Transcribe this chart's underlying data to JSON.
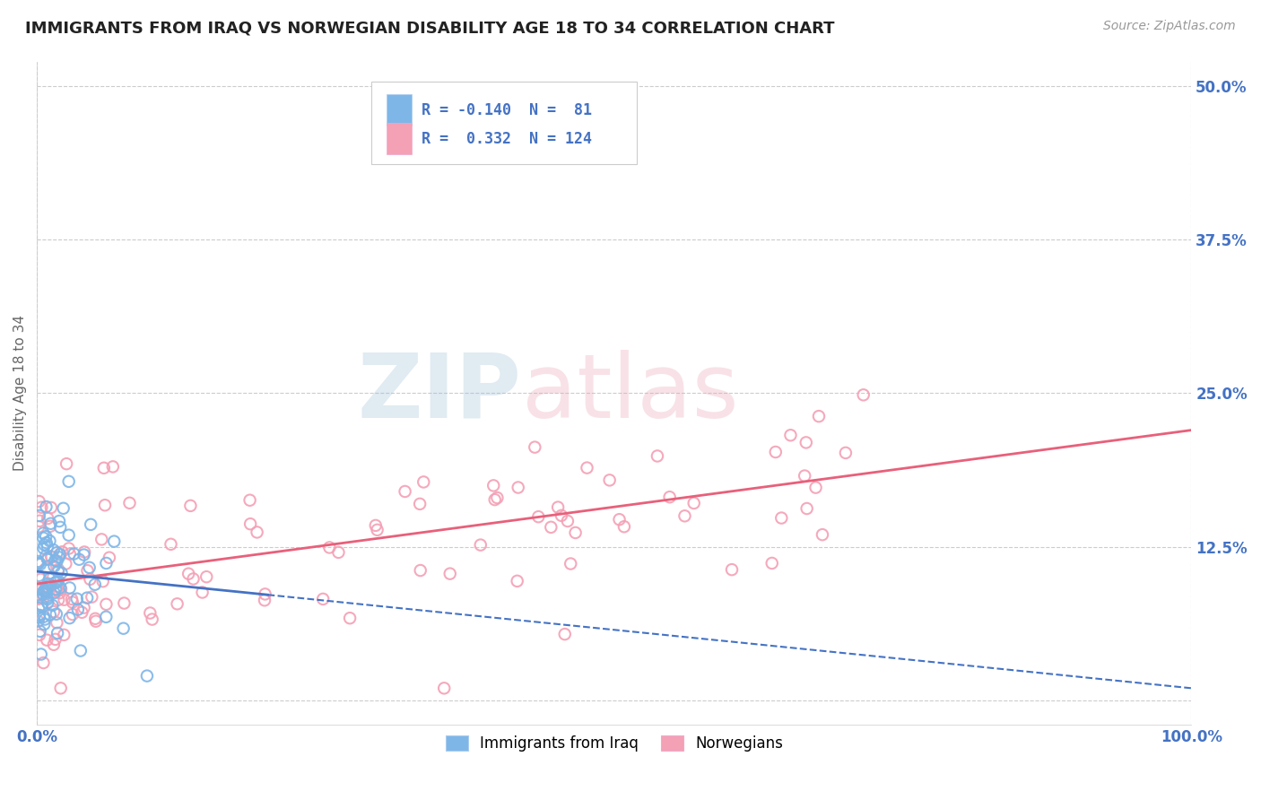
{
  "title": "IMMIGRANTS FROM IRAQ VS NORWEGIAN DISABILITY AGE 18 TO 34 CORRELATION CHART",
  "source": "Source: ZipAtlas.com",
  "ylabel": "Disability Age 18 to 34",
  "xlim": [
    0,
    100
  ],
  "ylim": [
    -2,
    52
  ],
  "ytick_vals": [
    0,
    12.5,
    25.0,
    37.5,
    50.0
  ],
  "ytick_labels": [
    "",
    "12.5%",
    "25.0%",
    "37.5%",
    "50.0%"
  ],
  "xtick_vals": [
    0,
    100
  ],
  "xtick_labels": [
    "0.0%",
    "100.0%"
  ],
  "iraq_R": -0.14,
  "iraq_N": 81,
  "norway_R": 0.332,
  "norway_N": 124,
  "iraq_color": "#7EB6E8",
  "norway_color": "#F4A0B5",
  "iraq_line_color": "#4472C4",
  "norway_line_color": "#E8607A",
  "legend_labels": [
    "Immigrants from Iraq",
    "Norwegians"
  ],
  "background_color": "#FFFFFF",
  "grid_color": "#CCCCCC",
  "title_color": "#222222",
  "title_fontsize": 13,
  "axis_label_color": "#4472C4",
  "watermark_zip": "ZIP",
  "watermark_atlas": "atlas",
  "iraq_trend_x0": 0,
  "iraq_trend_x1": 100,
  "iraq_trend_y0": 10.5,
  "iraq_trend_y1": 1.0,
  "norway_trend_x0": 0,
  "norway_trend_x1": 100,
  "norway_trend_y0": 9.5,
  "norway_trend_y1": 22.0,
  "iraq_solid_x1": 20,
  "norway_solid": true
}
